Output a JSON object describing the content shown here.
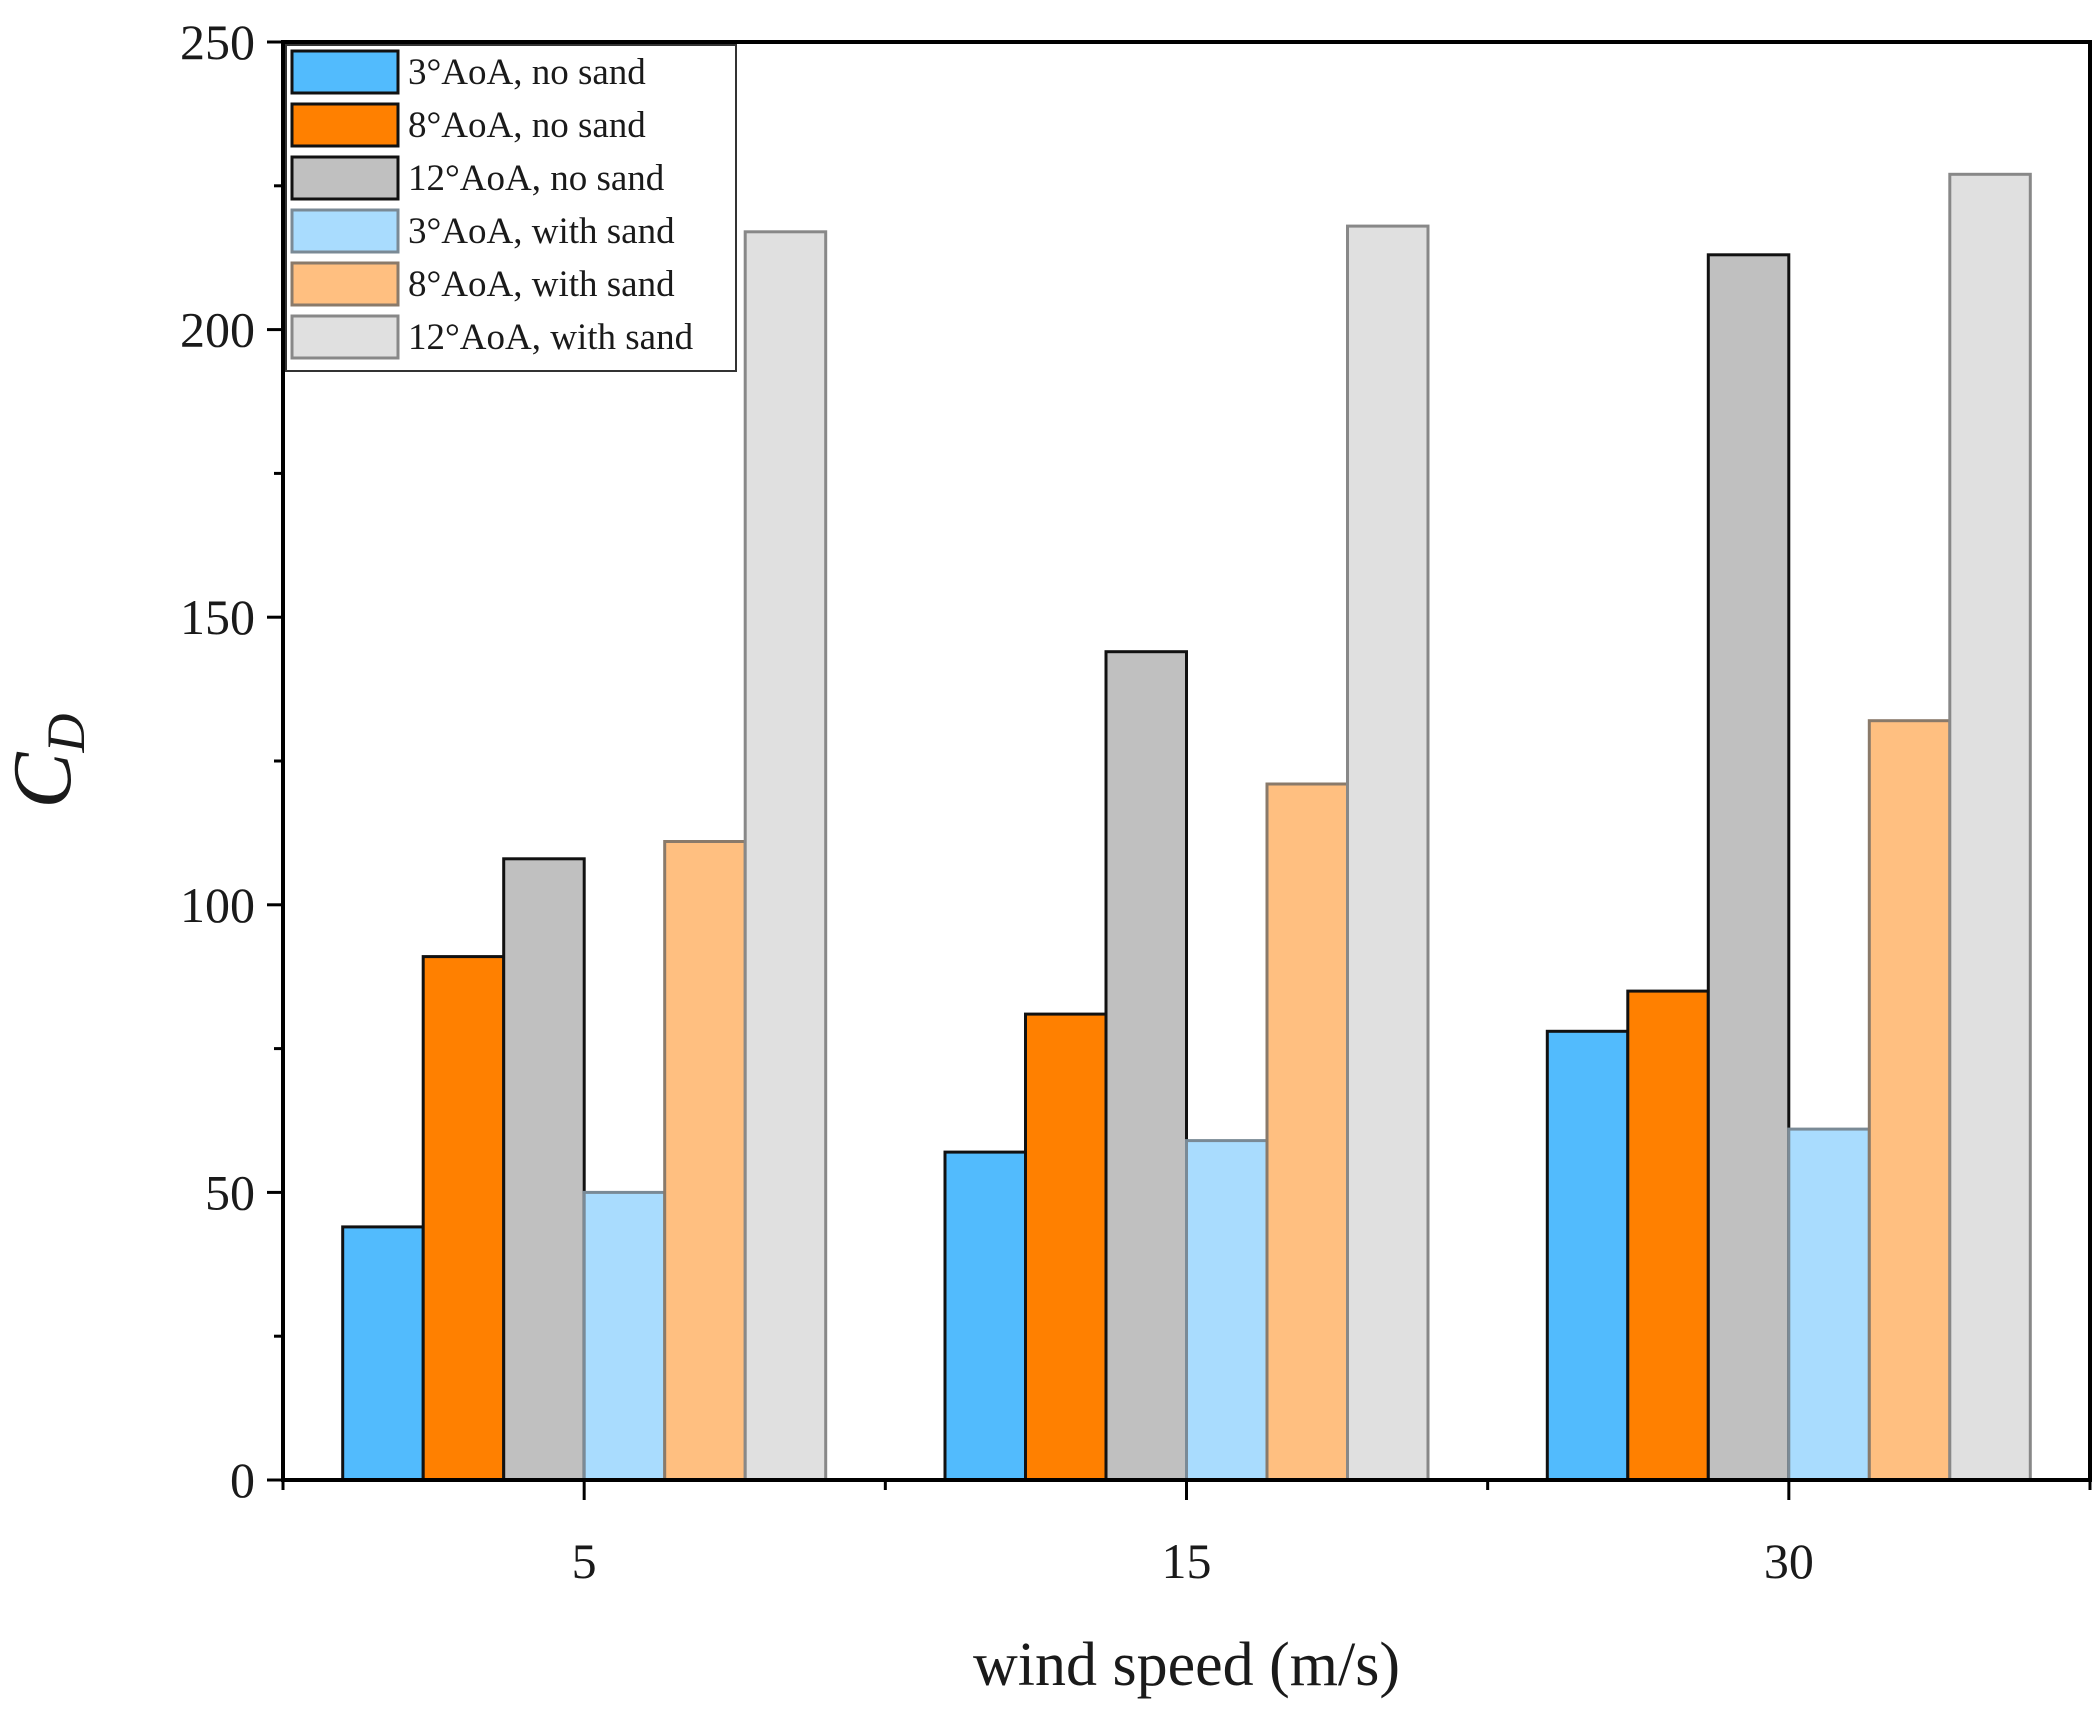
{
  "chart_data": {
    "type": "bar",
    "title": "",
    "xlabel": "wind speed (m/s)",
    "ylabel": "C",
    "ylabel_subscript": "D",
    "categories": [
      "5",
      "15",
      "30"
    ],
    "ylim": [
      0,
      250
    ],
    "yticks": [
      0,
      50,
      100,
      150,
      200,
      250
    ],
    "legend_position": "top-left",
    "grid": false,
    "series": [
      {
        "name": "3°AoA, no sand",
        "color": "#52bbfd",
        "edge": "#111111",
        "values": [
          44,
          57,
          78
        ]
      },
      {
        "name": "8°AoA, no sand",
        "color": "#ff8000",
        "edge": "#111111",
        "values": [
          91,
          81,
          85
        ]
      },
      {
        "name": "12°AoA, no sand",
        "color": "#c0c0c0",
        "edge": "#111111",
        "values": [
          108,
          144,
          213
        ]
      },
      {
        "name": "3°AoA, with sand",
        "color": "#a9dcfe",
        "edge": "#7a8a96",
        "values": [
          50,
          59,
          61
        ]
      },
      {
        "name": "8°AoA, with sand",
        "color": "#ffbf80",
        "edge": "#8a7a6a",
        "values": [
          111,
          121,
          132
        ]
      },
      {
        "name": "12°AoA, with sand",
        "color": "#e0e0e0",
        "edge": "#888888",
        "values": [
          217,
          218,
          227
        ]
      }
    ]
  }
}
